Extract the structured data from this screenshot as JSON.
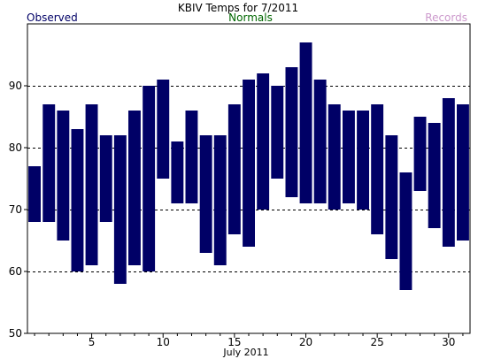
{
  "chart_data": {
    "type": "bar",
    "subtype": "floating-range",
    "title": "KBIV Temps for 7/2011",
    "xlabel": "July 2011",
    "ylabel": "",
    "legend": {
      "placement": "top",
      "entries": [
        {
          "label": "Observed",
          "color": "#000066"
        },
        {
          "label": "Normals",
          "color": "#006600"
        },
        {
          "label": "Records",
          "color": "#cc99cc"
        }
      ]
    },
    "ylim": [
      50,
      100
    ],
    "xlim": [
      0.5,
      31.5
    ],
    "yticks": [
      50,
      60,
      70,
      80,
      90
    ],
    "xticks": [
      5,
      10,
      15,
      20,
      25,
      30
    ],
    "grid": {
      "y": true,
      "style": "dashed",
      "color": "#000000"
    },
    "bar_color": "#000066",
    "series": [
      {
        "name": "Observed",
        "x": [
          1,
          2,
          3,
          4,
          5,
          6,
          7,
          8,
          9,
          10,
          11,
          12,
          13,
          14,
          15,
          16,
          17,
          18,
          19,
          20,
          21,
          22,
          23,
          24,
          25,
          26,
          27,
          28,
          29,
          30,
          31
        ],
        "high": [
          77,
          87,
          86,
          83,
          87,
          82,
          82,
          86,
          90,
          91,
          81,
          86,
          82,
          82,
          87,
          91,
          92,
          90,
          93,
          97,
          91,
          87,
          86,
          86,
          87,
          82,
          76,
          85,
          84,
          88,
          87
        ],
        "low": [
          68,
          68,
          65,
          60,
          61,
          68,
          58,
          61,
          60,
          75,
          71,
          71,
          63,
          61,
          66,
          64,
          70,
          75,
          72,
          71,
          71,
          70,
          71,
          70,
          66,
          62,
          57,
          73,
          67,
          64,
          65
        ]
      }
    ]
  }
}
